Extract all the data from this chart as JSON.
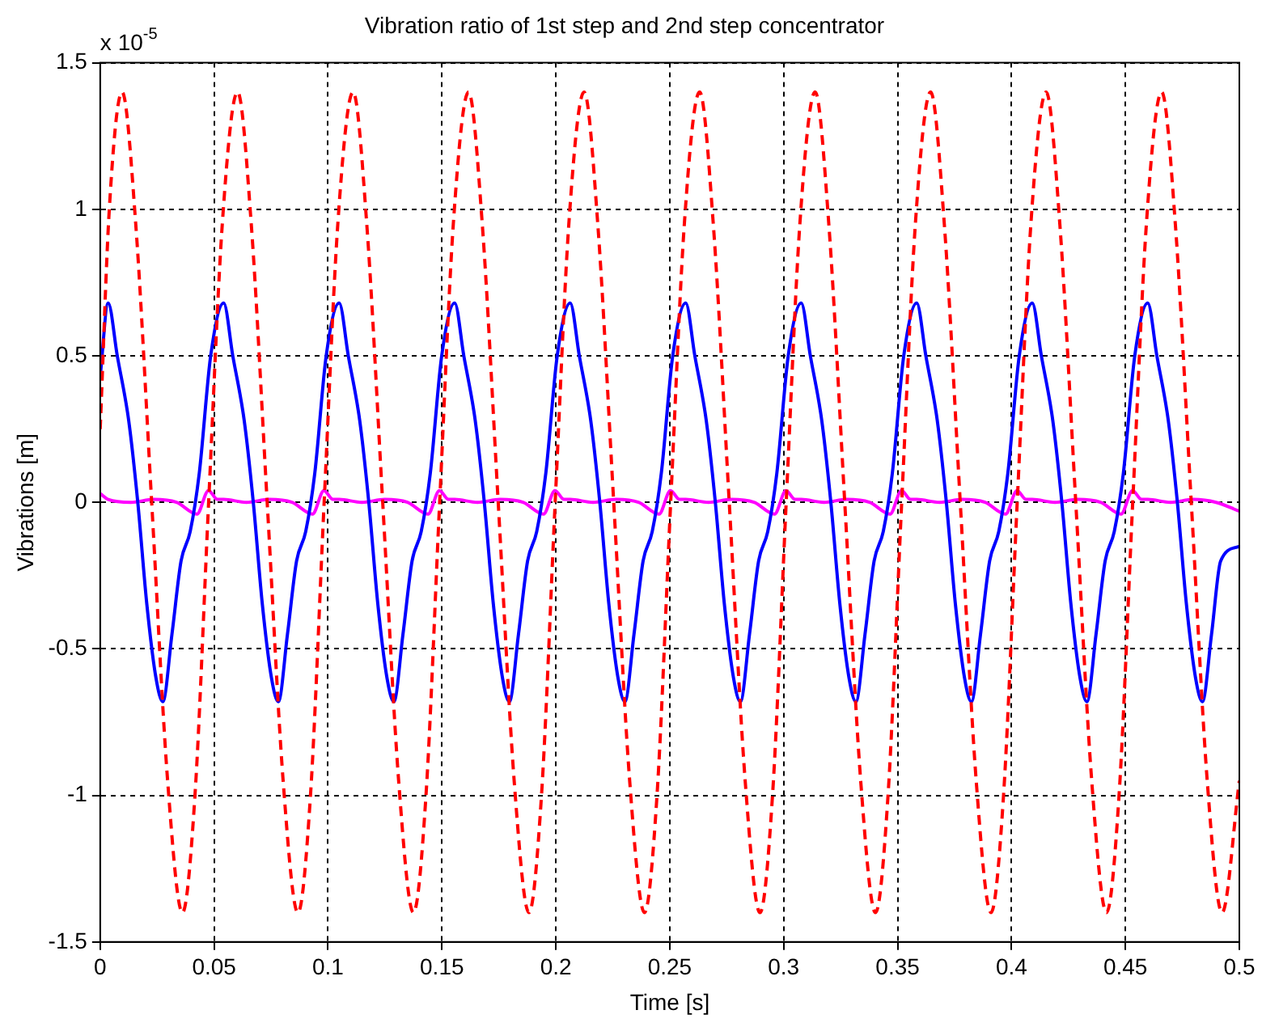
{
  "chart_data": {
    "type": "line",
    "title": "Vibration ratio of 1st step and 2nd step concentrator",
    "xlabel": "Time [s]",
    "ylabel": "Vibrations [m]",
    "annotations": [
      "x 10$^{-5}$"
    ],
    "xlim": [
      0,
      0.5
    ],
    "xticks": [
      0,
      0.05,
      0.1,
      0.15,
      0.2,
      0.25,
      0.3,
      0.35,
      0.4,
      0.45,
      0.5
    ],
    "ylim": [
      -1.5,
      1.5
    ],
    "yticks": [
      -1.5,
      -1,
      -0.5,
      0,
      0.5,
      1,
      1.5
    ],
    "grid": true,
    "marker": "none",
    "series": [
      {
        "color": "#ff0000",
        "line_style": "dashed",
        "x": [
          0,
          0.004,
          0.0096,
          0.0156,
          0.0226,
          0.0296,
          0.0361,
          0.0416,
          0.0476,
          0.0536,
          0.0603,
          0.0663,
          0.0733,
          0.0803,
          0.0868,
          0.0923,
          0.0983,
          0.1043,
          0.111,
          0.117,
          0.124,
          0.131,
          0.1375,
          0.143,
          0.149,
          0.155,
          0.1617,
          0.1677,
          0.1747,
          0.1817,
          0.1882,
          0.1937,
          0.1997,
          0.2057,
          0.2124,
          0.2184,
          0.2254,
          0.2324,
          0.2389,
          0.2444,
          0.2504,
          0.2564,
          0.2631,
          0.2691,
          0.2761,
          0.2831,
          0.2896,
          0.2951,
          0.3011,
          0.3071,
          0.3138,
          0.3198,
          0.3268,
          0.3338,
          0.3403,
          0.3458,
          0.3518,
          0.3578,
          0.3645,
          0.3705,
          0.3775,
          0.3845,
          0.391,
          0.3965,
          0.4025,
          0.4085,
          0.4152,
          0.4212,
          0.4282,
          0.4352,
          0.4417,
          0.4472,
          0.4532,
          0.4592,
          0.4659,
          0.4719,
          0.4789,
          0.4859,
          0.4924,
          0.5
        ],
        "values": [
          0.25,
          1.0,
          1.4,
          0.95,
          0,
          -0.95,
          -1.4,
          -1.0,
          0,
          0.95,
          1.4,
          0.95,
          0,
          -0.95,
          -1.4,
          -1.0,
          0,
          0.95,
          1.4,
          0.95,
          0,
          -0.95,
          -1.4,
          -1.0,
          0,
          0.95,
          1.4,
          0.95,
          0,
          -0.95,
          -1.4,
          -1.0,
          0,
          0.95,
          1.4,
          0.95,
          0,
          -0.95,
          -1.4,
          -1.0,
          0,
          0.95,
          1.4,
          0.95,
          0,
          -0.95,
          -1.4,
          -1.0,
          0,
          0.95,
          1.4,
          0.95,
          0,
          -0.95,
          -1.4,
          -1.0,
          0,
          0.95,
          1.4,
          0.95,
          0,
          -0.95,
          -1.4,
          -1.0,
          0,
          0.95,
          1.4,
          0.95,
          0,
          -0.95,
          -1.4,
          -1.0,
          0,
          0.95,
          1.4,
          0.95,
          0,
          -0.95,
          -1.4,
          -0.95
        ]
      },
      {
        "color": "#0000ff",
        "line_style": "solid",
        "x": [
          0,
          0.0035,
          0.0075,
          0.0125,
          0.0165,
          0.0205,
          0.0245,
          0.0275,
          0.0315,
          0.0355,
          0.0395,
          0.0435,
          0.0485,
          0.0542,
          0.0582,
          0.0632,
          0.0672,
          0.0712,
          0.0752,
          0.0782,
          0.0822,
          0.0862,
          0.0902,
          0.0942,
          0.0992,
          0.1049,
          0.1089,
          0.1139,
          0.1179,
          0.1219,
          0.1259,
          0.1289,
          0.1329,
          0.1369,
          0.1409,
          0.1449,
          0.1499,
          0.1556,
          0.1596,
          0.1646,
          0.1686,
          0.1726,
          0.1766,
          0.1796,
          0.1836,
          0.1876,
          0.1916,
          0.1956,
          0.2006,
          0.2063,
          0.2103,
          0.2153,
          0.2193,
          0.2233,
          0.2273,
          0.2303,
          0.2343,
          0.2383,
          0.2423,
          0.2463,
          0.2513,
          0.257,
          0.261,
          0.266,
          0.27,
          0.274,
          0.278,
          0.281,
          0.285,
          0.289,
          0.293,
          0.297,
          0.302,
          0.3077,
          0.3117,
          0.3167,
          0.3207,
          0.3247,
          0.3287,
          0.3317,
          0.3357,
          0.3397,
          0.3437,
          0.3477,
          0.3527,
          0.3584,
          0.3624,
          0.3674,
          0.3714,
          0.3754,
          0.3794,
          0.3824,
          0.3864,
          0.3904,
          0.3944,
          0.3984,
          0.4034,
          0.4091,
          0.4131,
          0.4181,
          0.4221,
          0.4261,
          0.4301,
          0.4331,
          0.4371,
          0.4411,
          0.4451,
          0.4491,
          0.4541,
          0.4598,
          0.4638,
          0.4688,
          0.4728,
          0.4768,
          0.4808,
          0.4838,
          0.4878,
          0.4918,
          0.5
        ],
        "values": [
          0.43,
          0.68,
          0.5,
          0.28,
          0,
          -0.35,
          -0.6,
          -0.68,
          -0.45,
          -0.2,
          -0.1,
          0.1,
          0.5,
          0.68,
          0.5,
          0.28,
          0,
          -0.35,
          -0.6,
          -0.68,
          -0.45,
          -0.2,
          -0.1,
          0.1,
          0.5,
          0.68,
          0.5,
          0.28,
          0,
          -0.35,
          -0.6,
          -0.68,
          -0.45,
          -0.2,
          -0.1,
          0.1,
          0.5,
          0.68,
          0.5,
          0.28,
          0,
          -0.35,
          -0.6,
          -0.68,
          -0.45,
          -0.2,
          -0.1,
          0.1,
          0.5,
          0.68,
          0.5,
          0.28,
          0,
          -0.35,
          -0.6,
          -0.68,
          -0.45,
          -0.2,
          -0.1,
          0.1,
          0.5,
          0.68,
          0.5,
          0.28,
          0,
          -0.35,
          -0.6,
          -0.68,
          -0.45,
          -0.2,
          -0.1,
          0.1,
          0.5,
          0.68,
          0.5,
          0.28,
          0,
          -0.35,
          -0.6,
          -0.68,
          -0.45,
          -0.2,
          -0.1,
          0.1,
          0.5,
          0.68,
          0.5,
          0.28,
          0,
          -0.35,
          -0.6,
          -0.68,
          -0.45,
          -0.2,
          -0.1,
          0.1,
          0.5,
          0.68,
          0.5,
          0.28,
          0,
          -0.35,
          -0.6,
          -0.68,
          -0.45,
          -0.2,
          -0.1,
          0.1,
          0.5,
          0.68,
          0.5,
          0.28,
          0,
          -0.35,
          -0.6,
          -0.68,
          -0.45,
          -0.2,
          -0.15
        ]
      },
      {
        "color": "#ff00ff",
        "line_style": "solid",
        "x": [
          0,
          0.0035,
          0.0135,
          0.0235,
          0.0335,
          0.0425,
          0.0475,
          0.0515,
          0.0542,
          0.0642,
          0.0742,
          0.0842,
          0.0932,
          0.0982,
          0.1022,
          0.1049,
          0.1149,
          0.1249,
          0.1349,
          0.1439,
          0.1489,
          0.1529,
          0.1556,
          0.1656,
          0.1756,
          0.1856,
          0.1946,
          0.1996,
          0.2036,
          0.2063,
          0.2163,
          0.2263,
          0.2363,
          0.2453,
          0.2503,
          0.2543,
          0.257,
          0.267,
          0.277,
          0.287,
          0.296,
          0.301,
          0.305,
          0.3077,
          0.3177,
          0.3277,
          0.3377,
          0.3467,
          0.3517,
          0.3557,
          0.3584,
          0.3684,
          0.3784,
          0.3884,
          0.3974,
          0.4024,
          0.4064,
          0.4091,
          0.4191,
          0.4291,
          0.4391,
          0.4481,
          0.4531,
          0.4571,
          0.4598,
          0.4698,
          0.4798,
          0.4898,
          0.5
        ],
        "values": [
          0.03,
          0.01,
          0,
          0.01,
          0,
          -0.04,
          0.04,
          0.01,
          0.01,
          0,
          0.01,
          0,
          -0.04,
          0.04,
          0.01,
          0.01,
          0,
          0.01,
          0,
          -0.04,
          0.04,
          0.01,
          0.01,
          0,
          0.01,
          0,
          -0.04,
          0.04,
          0.01,
          0.01,
          0,
          0.01,
          0,
          -0.04,
          0.04,
          0.01,
          0.01,
          0,
          0.01,
          0,
          -0.04,
          0.04,
          0.01,
          0.01,
          0,
          0.01,
          0,
          -0.04,
          0.04,
          0.01,
          0.01,
          0,
          0.01,
          0,
          -0.04,
          0.04,
          0.01,
          0.01,
          0,
          0.01,
          0,
          -0.04,
          0.04,
          0.01,
          0.01,
          0,
          0.01,
          0,
          -0.03
        ]
      }
    ]
  }
}
